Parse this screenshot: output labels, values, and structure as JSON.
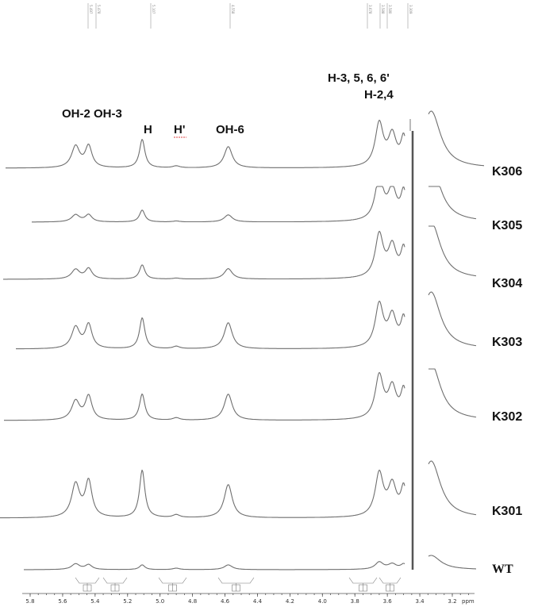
{
  "chart_data": {
    "type": "line",
    "title": "",
    "xlabel": "ppm",
    "xlim": [
      5.95,
      3.05
    ],
    "x_reversed": true,
    "x_ticks": [
      "5.8",
      "5.6",
      "5.4",
      "5.2",
      "5.0",
      "4.8",
      "4.6",
      "4.4",
      "4.2",
      "4.0",
      "3.8",
      "3.6",
      "3.4",
      "3.2"
    ],
    "top_peak_labels": [
      "5.497",
      "5.478",
      "5.107",
      "4.558",
      "3.678",
      "3.588",
      "3.580",
      "3.309"
    ],
    "peak_annotations": [
      "OH-2 OH-3",
      "H",
      "H'",
      "OH-6",
      "H-3, 5, 6, 6'",
      "H-2,4"
    ],
    "peaks": [
      {
        "label": "OH-2",
        "ppm": 5.52
      },
      {
        "label": "OH-3",
        "ppm": 5.44
      },
      {
        "label": "H",
        "ppm": 5.11
      },
      {
        "label": "H'",
        "ppm": 4.9
      },
      {
        "label": "OH-6",
        "ppm": 4.58
      },
      {
        "label": "H-3, 5, 6, 6'",
        "ppm": 3.65
      },
      {
        "label": "H-2,4",
        "ppm": 3.55
      },
      {
        "label": "",
        "ppm": 3.33
      }
    ],
    "series": [
      {
        "name": "K306",
        "relative_intensities": {
          "OH-2": 0.45,
          "OH-3": 0.45,
          "H": 0.6,
          "H'": 0.04,
          "OH-6": 0.45
        }
      },
      {
        "name": "K305",
        "relative_intensities": {
          "OH-2": 0.15,
          "OH-3": 0.15,
          "H": 0.25,
          "H'": 0.02,
          "OH-6": 0.15
        }
      },
      {
        "name": "K304",
        "relative_intensities": {
          "OH-2": 0.2,
          "OH-3": 0.22,
          "H": 0.3,
          "H'": 0.02,
          "OH-6": 0.22
        }
      },
      {
        "name": "K303",
        "relative_intensities": {
          "OH-2": 0.45,
          "OH-3": 0.5,
          "H": 0.65,
          "H'": 0.05,
          "OH-6": 0.55
        }
      },
      {
        "name": "K302",
        "relative_intensities": {
          "OH-2": 0.4,
          "OH-3": 0.5,
          "H": 0.55,
          "H'": 0.05,
          "OH-6": 0.55
        }
      },
      {
        "name": "K301",
        "relative_intensities": {
          "OH-2": 0.7,
          "OH-3": 0.75,
          "H": 1.0,
          "H'": 0.06,
          "OH-6": 0.7
        }
      },
      {
        "name": "WT",
        "relative_intensities": {
          "OH-2": 0.12,
          "OH-3": 0.1,
          "H": 0.1,
          "H'": 0.03,
          "OH-6": 0.1
        }
      }
    ],
    "grid": false,
    "legend": "none"
  }
}
